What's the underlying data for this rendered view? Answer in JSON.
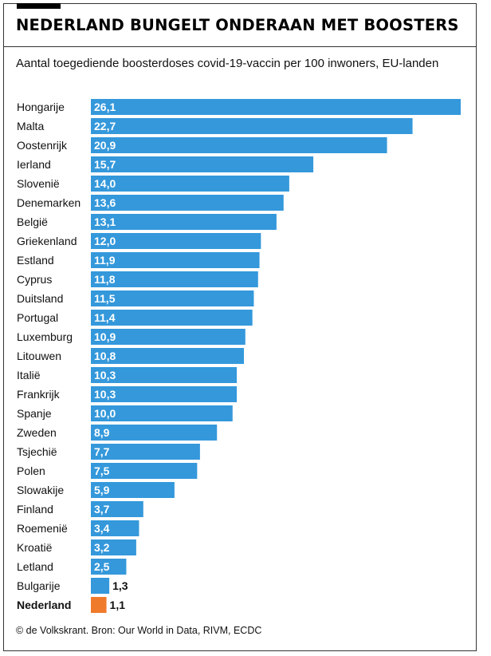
{
  "header": {
    "title": "NEDERLAND BUNGELT ONDERAAN MET BOOSTERS",
    "subtitle": "Aantal toegediende boosterdoses covid-19-vaccin per 100 inwoners, EU-landen"
  },
  "footer": {
    "source": "© de Volkskrant. Bron: Our World in Data, RIVM, ECDC"
  },
  "colors": {
    "bar": "#3498db",
    "highlight": "#f07a2c"
  },
  "chart_data": {
    "type": "bar",
    "orientation": "horizontal",
    "title": "NEDERLAND BUNGELT ONDERAAN MET BOOSTERS",
    "subtitle": "Aantal toegediende boosterdoses covid-19-vaccin per 100 inwoners, EU-landen",
    "categories": [
      "Hongarije",
      "Malta",
      "Oostenrijk",
      "Ierland",
      "Slovenië",
      "Denemarken",
      "België",
      "Griekenland",
      "Estland",
      "Cyprus",
      "Duitsland",
      "Portugal",
      "Luxemburg",
      "Litouwen",
      "Italië",
      "Frankrijk",
      "Spanje",
      "Zweden",
      "Tsjechië",
      "Polen",
      "Slowakije",
      "Finland",
      "Roemenië",
      "Kroatië",
      "Letland",
      "Bulgarije",
      "Nederland"
    ],
    "values": [
      26.1,
      22.7,
      20.9,
      15.7,
      14.0,
      13.6,
      13.1,
      12.0,
      11.9,
      11.8,
      11.5,
      11.4,
      10.9,
      10.8,
      10.3,
      10.3,
      10.0,
      8.9,
      7.7,
      7.5,
      5.9,
      3.7,
      3.4,
      3.2,
      2.5,
      1.3,
      1.1
    ],
    "value_labels": [
      "26,1",
      "22,7",
      "20,9",
      "15,7",
      "14,0",
      "13,6",
      "13,1",
      "12,0",
      "11,9",
      "11,8",
      "11,5",
      "11,4",
      "10,9",
      "10,8",
      "10,3",
      "10,3",
      "10,0",
      "8,9",
      "7,7",
      "7,5",
      "5,9",
      "3,7",
      "3,4",
      "3,2",
      "2,5",
      "1,3",
      "1,1"
    ],
    "highlight": "Nederland",
    "xlim": [
      0,
      26.1
    ],
    "grid": false,
    "legend": "none"
  }
}
